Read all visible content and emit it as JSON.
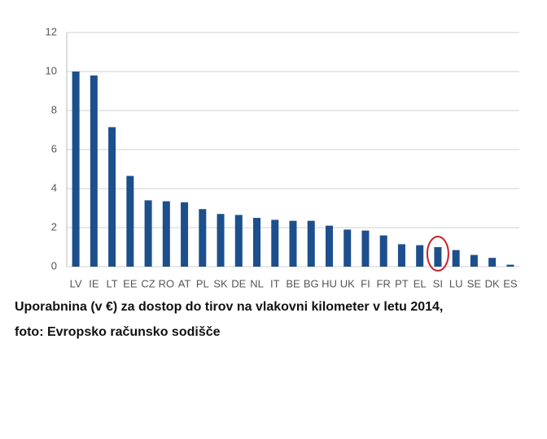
{
  "chart_data": {
    "type": "bar",
    "categories": [
      "LV",
      "IE",
      "LT",
      "EE",
      "CZ",
      "RO",
      "AT",
      "PL",
      "SK",
      "DE",
      "NL",
      "IT",
      "BE",
      "BG",
      "HU",
      "UK",
      "FI",
      "FR",
      "PT",
      "EL",
      "SI",
      "LU",
      "SE",
      "DK",
      "ES"
    ],
    "values": [
      10.0,
      9.8,
      7.15,
      4.65,
      3.4,
      3.35,
      3.3,
      2.95,
      2.7,
      2.65,
      2.5,
      2.4,
      2.35,
      2.35,
      2.1,
      1.9,
      1.85,
      1.6,
      1.15,
      1.1,
      1.0,
      0.85,
      0.6,
      0.45,
      0.1
    ],
    "color": "#1c4f8c",
    "ylim": [
      0,
      12
    ],
    "yticks": [
      0,
      2,
      4,
      6,
      8,
      10,
      12
    ],
    "grid": true,
    "highlight": "SI",
    "highlight_color": "#c8202a",
    "caption": [
      "Uporabnina (v €) za dostop do tirov na vlakovni kilometer v letu 2014,",
      "foto: Evropsko računsko sodišče"
    ]
  }
}
